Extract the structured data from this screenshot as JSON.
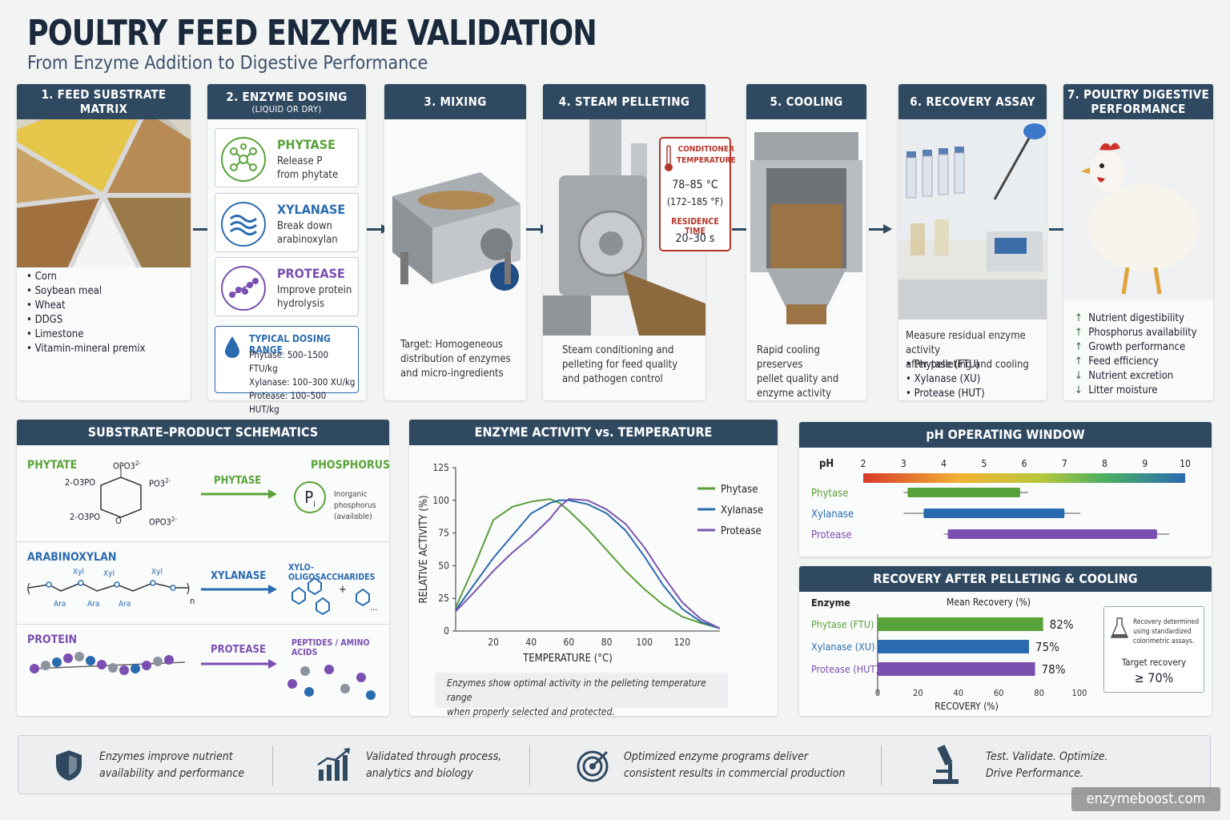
{
  "title": "POULTRY FEED ENZYME VALIDATION",
  "subtitle": "From Enzyme Addition to Digestive Performance",
  "steps": {
    "s1": {
      "title": "1. FEED SUBSTRATE MATRIX",
      "items": [
        "Corn",
        "Soybean meal",
        "Wheat",
        "DDGS",
        "Limestone",
        "Vitamin-mineral premix"
      ]
    },
    "s2": {
      "title": "2. ENZYME DOSING",
      "sub": "(LIQUID OR DRY)",
      "phytase": {
        "name": "PHYTASE",
        "desc1": "Release P",
        "desc2": "from phytate"
      },
      "xylanase": {
        "name": "XYLANASE",
        "desc1": "Break down",
        "desc2": "arabinoxylan"
      },
      "protease": {
        "name": "PROTEASE",
        "desc1": "Improve protein",
        "desc2": "hydrolysis"
      },
      "range": {
        "title": "TYPICAL DOSING RANGE",
        "l1": "Phytase: 500–1500 FTU/kg",
        "l2": "Xylanase: 100–300 XU/kg",
        "l3": "Protease: 100–500 HUT/kg"
      }
    },
    "s3": {
      "title": "3. MIXING",
      "l1": "Target: Homogeneous",
      "l2": "distribution of enzymes",
      "l3": "and micro-ingredients"
    },
    "s4": {
      "title": "4. STEAM PELLETING",
      "l1": "Steam conditioning and",
      "l2": "pelleting for feed quality",
      "l3": "and pathogen control",
      "cond_title1": "CONDITIONER",
      "cond_title2": "TEMPERATURE",
      "cond_c": "78–85 °C",
      "cond_f": "(172–185 °F)",
      "res_title": "RESIDENCE TIME",
      "res_val": "20–30 s"
    },
    "s5": {
      "title": "5. COOLING",
      "l1": "Rapid cooling preserves",
      "l2": "pellet quality and",
      "l3": "enzyme activity"
    },
    "s6": {
      "title": "6. RECOVERY ASSAY",
      "l1": "Measure residual enzyme activity",
      "l2": "after pelleting and cooling",
      "items": [
        "Phytase (FTU)",
        "Xylanase (XU)",
        "Protease (HUT)"
      ]
    },
    "s7": {
      "title1": "7. POULTRY DIGESTIVE",
      "title2": "PERFORMANCE",
      "items": [
        {
          "dir": "↑",
          "t": "Nutrient digestibility"
        },
        {
          "dir": "↑",
          "t": "Phosphorus availability"
        },
        {
          "dir": "↑",
          "t": "Growth performance"
        },
        {
          "dir": "↑",
          "t": "Feed efficiency"
        },
        {
          "dir": "↓",
          "t": "Nutrient excretion"
        },
        {
          "dir": "↓",
          "t": "Litter moisture"
        }
      ]
    }
  },
  "schem": {
    "title": "SUBSTRATE–PRODUCT SCHEMATICS",
    "r1": {
      "sub": "PHYTATE",
      "enz": "PHYTASE",
      "prod": "PHOSPHORUS",
      "pi": "P",
      "pi_sub": "i",
      "note1": "Inorganic",
      "note2": "phosphorus",
      "note3": "(available)",
      "g_top": "OPO3",
      "g_tl": "2-O3PO",
      "g_tr": "PO3",
      "g_bl": "2-O3PO",
      "g_br": "OPO3",
      "g_o": "O"
    },
    "r2": {
      "sub": "ARABINOXYLAN",
      "enz": "XYLANASE",
      "prod": "XYLO-OLIGOSACCHARIDES",
      "xyl": "Xyl",
      "ara": "Ara",
      "n": "n",
      "plus": "+",
      "dots": "..."
    },
    "r3": {
      "sub": "PROTEIN",
      "enz": "PROTEASE",
      "prod": "PEPTIDES / AMINO ACIDS"
    }
  },
  "chart_data": [
    {
      "type": "line",
      "title": "ENZYME ACTIVITY vs. TEMPERATURE",
      "xlabel": "TEMPERATURE (°C)",
      "ylabel": "RELATIVE ACTIVITY (%)",
      "xlim": [
        0,
        140
      ],
      "ylim": [
        0,
        125
      ],
      "xticks": [
        20,
        40,
        60,
        80,
        100,
        120
      ],
      "yticks": [
        0,
        25,
        50,
        75,
        100,
        125
      ],
      "legend": "right",
      "note1": "Enzymes show optimal activity in the pelleting temperature range",
      "note2": "when properly selected and protected.",
      "series": [
        {
          "name": "Phytase",
          "color": "#5a9e3a",
          "x": [
            0,
            10,
            20,
            30,
            40,
            50,
            55,
            60,
            70,
            80,
            90,
            100,
            110,
            120,
            130,
            140
          ],
          "y": [
            18,
            50,
            85,
            95,
            99,
            101,
            98,
            92,
            78,
            62,
            46,
            32,
            20,
            11,
            6,
            2
          ]
        },
        {
          "name": "Xylanase",
          "color": "#2a6bb0",
          "x": [
            0,
            10,
            20,
            30,
            40,
            50,
            55,
            60,
            70,
            80,
            90,
            100,
            110,
            120,
            130,
            140
          ],
          "y": [
            16,
            36,
            56,
            73,
            90,
            98,
            100,
            100,
            97,
            90,
            77,
            57,
            35,
            17,
            7,
            2
          ]
        },
        {
          "name": "Protease",
          "color": "#7a55b0",
          "x": [
            0,
            10,
            20,
            30,
            40,
            50,
            55,
            60,
            70,
            80,
            90,
            100,
            110,
            120,
            130,
            140
          ],
          "y": [
            15,
            30,
            46,
            60,
            72,
            86,
            95,
            101,
            100,
            93,
            82,
            64,
            42,
            22,
            9,
            2
          ]
        }
      ]
    },
    {
      "type": "bar",
      "title": "pH OPERATING WINDOW",
      "xlabel": "pH",
      "xticks": [
        2,
        3,
        4,
        5,
        6,
        7,
        8,
        9,
        10
      ],
      "series": [
        {
          "name": "Phytase",
          "color": "#5aa33a",
          "range": [
            3.1,
            5.9
          ],
          "whisker": [
            3.0,
            6.1
          ]
        },
        {
          "name": "Xylanase",
          "color": "#2a6bb0",
          "range": [
            3.5,
            7.0
          ],
          "whisker": [
            3.0,
            7.4
          ]
        },
        {
          "name": "Protease",
          "color": "#7a4fb0",
          "range": [
            4.1,
            9.3
          ],
          "whisker": [
            4.0,
            9.6
          ]
        }
      ]
    },
    {
      "type": "bar",
      "title": "RECOVERY AFTER PELLETING & COOLING",
      "xlabel": "RECOVERY (%)",
      "ylabel": "Enzyme",
      "series_label": "Mean Recovery (%)",
      "xlim": [
        0,
        100
      ],
      "xticks": [
        0,
        20,
        40,
        60,
        80,
        100
      ],
      "categories": [
        "Phytase (FTU)",
        "Xylanase (XU)",
        "Protease (HUT)"
      ],
      "values": [
        82,
        75,
        78
      ],
      "labels": [
        "82%",
        "75%",
        "78%"
      ],
      "colors": [
        "#5aa33a",
        "#2a6bb0",
        "#7a4fb0"
      ],
      "note1": "Recovery determined",
      "note2": "using standardized",
      "note3": "colorimetric assays.",
      "target_label": "Target recovery",
      "target_val": "≥ 70%"
    }
  ],
  "bottom": {
    "b1a": "Enzymes improve nutrient",
    "b1b": "availability and performance",
    "b2a": "Validated through process,",
    "b2b": "analytics and biology",
    "b3a": "Optimized enzyme programs deliver",
    "b3b": "consistent results in commercial production",
    "b4a": "Test. Validate. Optimize.",
    "b4b": "Drive Performance."
  },
  "watermark": "enzymeboost.com",
  "colors": {
    "header": "#2f4961",
    "phytase": "#5aa33a",
    "xylanase": "#2a6bb0",
    "protease": "#7a4fb0",
    "alert": "#b5362b"
  }
}
